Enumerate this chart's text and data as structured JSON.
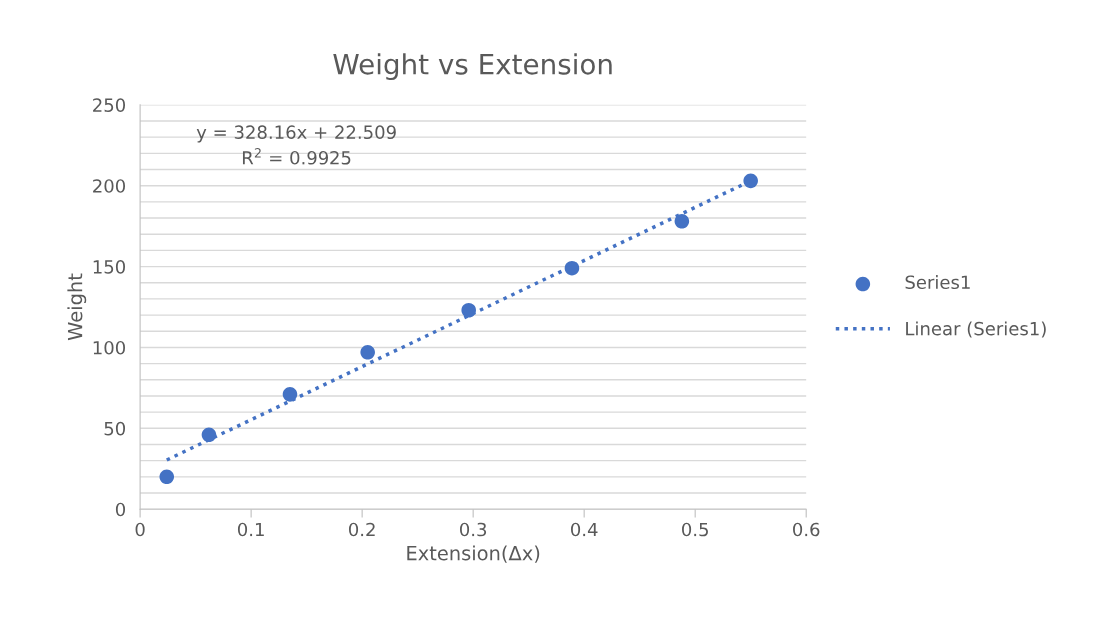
{
  "chart_data": {
    "type": "scatter",
    "title": "Weight vs Extension",
    "xlabel": "Extension(Δx)",
    "ylabel": "Weight",
    "annotations": [
      "y = 328.16x + 22.509\nR$^{2}$ = 0.9925"
    ],
    "series": [
      {
        "name": "Series1",
        "color": "#4472c4",
        "marker": "circle",
        "x": [
          0.024,
          0.062,
          0.135,
          0.205,
          0.296,
          0.389,
          0.488,
          0.55
        ],
        "values": [
          20,
          46,
          71,
          97,
          123,
          149,
          178,
          203
        ]
      },
      {
        "name": "Linear (Series1)",
        "type": "line",
        "color": "#4472c4",
        "line_style": "dotted",
        "marker": "none",
        "x": [
          0.024,
          0.55
        ],
        "values": [
          30.4,
          203
        ]
      }
    ],
    "xlim": [
      0,
      0.6
    ],
    "xticks": [
      0,
      0.1,
      0.2,
      0.3,
      0.4,
      0.5,
      0.6
    ],
    "ylim": [
      0,
      250
    ],
    "yticks": [
      0,
      {
        "value": 10,
        "label": null
      },
      {
        "value": 20,
        "label": null
      },
      {
        "value": 30,
        "label": null
      },
      {
        "value": 40,
        "label": null
      },
      50,
      {
        "value": 60,
        "label": null
      },
      {
        "value": 70,
        "label": null
      },
      {
        "value": 80,
        "label": null
      },
      {
        "value": 90,
        "label": null
      },
      100,
      {
        "value": 110,
        "label": null
      },
      {
        "value": 120,
        "label": null
      },
      {
        "value": 130,
        "label": null
      },
      {
        "value": 140,
        "label": null
      },
      150,
      {
        "value": 160,
        "label": null
      },
      {
        "value": 170,
        "label": null
      },
      {
        "value": 180,
        "label": null
      },
      {
        "value": 190,
        "label": null
      },
      200,
      {
        "value": 210,
        "label": null
      },
      {
        "value": 220,
        "label": null
      },
      {
        "value": 230,
        "label": null
      },
      {
        "value": 240,
        "label": null
      },
      250
    ],
    "grid": "y",
    "legend": "right"
  }
}
